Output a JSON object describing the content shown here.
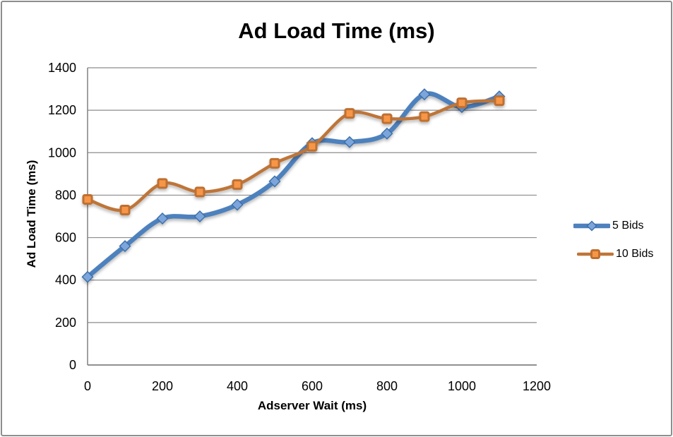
{
  "window": {
    "background": "#FFFFFF",
    "border_color": "#8E8E8E"
  },
  "chart_data": {
    "type": "line",
    "title": "Ad Load Time (ms)",
    "xlabel": "Adserver Wait (ms)",
    "ylabel": "Ad Load Time (ms)",
    "x": [
      0,
      100,
      200,
      300,
      400,
      500,
      600,
      700,
      800,
      900,
      1000,
      1100
    ],
    "series": [
      {
        "name": "5 Bids",
        "marker": "diamond",
        "line_color": "#4E81BD",
        "marker_fill": "#7CA5DC",
        "marker_stroke": "#3A6EA8",
        "line_width": 6.5,
        "values": [
          415,
          560,
          690,
          700,
          755,
          865,
          1045,
          1050,
          1090,
          1275,
          1215,
          1265
        ]
      },
      {
        "name": "10 Bids",
        "marker": "square",
        "line_color": "#BE7539",
        "marker_fill": "#F79646",
        "marker_stroke": "#BE6F30",
        "line_width": 4.5,
        "values": [
          780,
          730,
          855,
          815,
          850,
          950,
          1030,
          1185,
          1160,
          1170,
          1235,
          1245
        ]
      }
    ],
    "xlim": [
      0,
      1200
    ],
    "ylim": [
      0,
      1400
    ],
    "x_ticks": [
      0,
      200,
      400,
      600,
      800,
      1000,
      1200
    ],
    "y_ticks": [
      0,
      200,
      400,
      600,
      800,
      1000,
      1200,
      1400
    ],
    "grid": true,
    "gridline_color": "#8C8C8C",
    "axis_color": "#808080",
    "legend_position": "right",
    "smooth_lines": true
  }
}
